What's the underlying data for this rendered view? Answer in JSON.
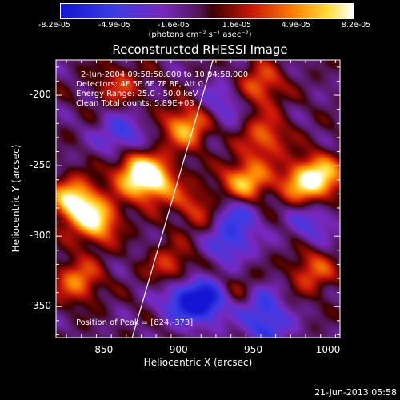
{
  "colorbar": {
    "tick_labels": [
      "-8.2e-05",
      "-4.9e-05",
      "-1.6e-05",
      "1.6e-05",
      "4.9e-05",
      "8.2e-05"
    ],
    "unit_label": "(photons cm⁻² s⁻¹ asec⁻²)"
  },
  "chart_data": {
    "type": "heatmap",
    "title": "Reconstructed RHESSI Image",
    "xlabel": "Heliocentric X (arcsec)",
    "ylabel": "Heliocentric Y (arcsec)",
    "xlim": [
      818,
      1008
    ],
    "ylim": [
      -372,
      -175
    ],
    "x_ticks": [
      850,
      900,
      950,
      1000
    ],
    "y_ticks": [
      -200,
      -250,
      -300,
      -350
    ],
    "colorscale_range": [
      -8.2e-05,
      8.2e-05
    ],
    "limb_line": [
      [
        869,
        -372
      ],
      [
        923,
        -175
      ]
    ],
    "annotations": {
      "time": "2-Jun-2004 09:58:58.000 to 10:04:58.000",
      "detectors": "Detectors: 4F 5F 6F 7F 8F, Att 0",
      "energy": "Energy Range: 25.0 - 50.0 keV",
      "clean": "Clean    Total counts: 5.89E+03",
      "peak": "Position of Peak = [824,-373]"
    },
    "blobs": [
      {
        "x": 830,
        "y": -275,
        "v": 0.95
      },
      {
        "x": 845,
        "y": -290,
        "v": 0.8
      },
      {
        "x": 872,
        "y": -255,
        "v": 0.9
      },
      {
        "x": 885,
        "y": -262,
        "v": 0.7
      },
      {
        "x": 905,
        "y": -222,
        "v": 0.75
      },
      {
        "x": 945,
        "y": -262,
        "v": 0.85
      },
      {
        "x": 958,
        "y": -230,
        "v": 0.55
      },
      {
        "x": 983,
        "y": -262,
        "v": 0.65
      },
      {
        "x": 997,
        "y": -258,
        "v": 0.7
      },
      {
        "x": 955,
        "y": -193,
        "v": 0.55
      },
      {
        "x": 990,
        "y": -325,
        "v": 0.5
      },
      {
        "x": 832,
        "y": -332,
        "v": 0.6
      },
      {
        "x": 895,
        "y": -322,
        "v": 0.45
      },
      {
        "x": 945,
        "y": -340,
        "v": 0.5
      },
      {
        "x": 860,
        "y": -193,
        "v": 0.4
      },
      {
        "x": 912,
        "y": -280,
        "v": 0.4
      },
      {
        "x": 918,
        "y": -347,
        "v": -0.75
      },
      {
        "x": 952,
        "y": -345,
        "v": -0.6
      },
      {
        "x": 902,
        "y": -345,
        "v": -0.55
      },
      {
        "x": 935,
        "y": -305,
        "v": -0.5
      },
      {
        "x": 862,
        "y": -228,
        "v": -0.5
      },
      {
        "x": 940,
        "y": -282,
        "v": -0.45
      },
      {
        "x": 960,
        "y": -365,
        "v": -0.5
      },
      {
        "x": 990,
        "y": -290,
        "v": -0.4
      },
      {
        "x": 930,
        "y": -205,
        "v": -0.35
      }
    ]
  },
  "footer": {
    "timestamp": "21-Jun-2013 05:58"
  }
}
